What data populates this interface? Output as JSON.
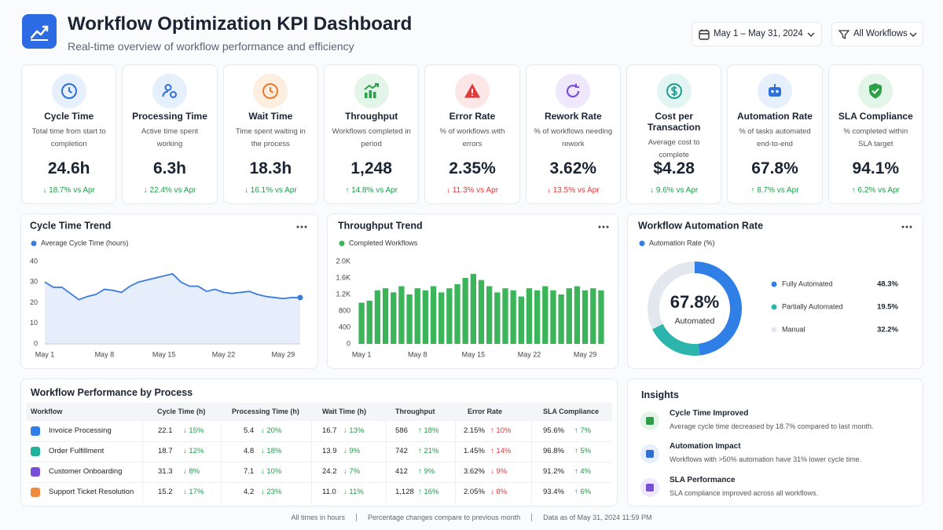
{
  "header": {
    "title": "Workflow Optimization KPI Dashboard",
    "subtitle": "Real-time overview of workflow performance and efficiency",
    "date_range": "May 1 – May 31, 2024",
    "filter": "All Workflows"
  },
  "kpis": [
    {
      "title": "Cycle Time",
      "description": "Total time from start to completion",
      "value": "24.6h",
      "change": "↓ 18.7% vs Apr",
      "color": "#1e9e4a"
    },
    {
      "title": "Processing Time",
      "description": "Active time spent working",
      "value": "6.3h",
      "change": "↓ 22.4% vs Apr",
      "color": "#1e9e4a"
    },
    {
      "title": "Wait Time",
      "description": "Time spent waiting in the process",
      "value": "18.3h",
      "change": "↓ 16.1% vs Apr",
      "color": "#1e9e4a"
    },
    {
      "title": "Throughput",
      "description": "Workflows completed in period",
      "value": "1,248",
      "change": "↑ 14.8% vs Apr",
      "color": "#1e9e4a"
    },
    {
      "title": "Error Rate",
      "description": "% of workflows with errors",
      "value": "2.35%",
      "change": "↓ 11.3% vs Apr",
      "color": "#e03a3a"
    },
    {
      "title": "Rework Rate",
      "description": "% of workflows needing rework",
      "value": "3.62%",
      "change": "↓ 13.5% vs Apr",
      "color": "#e03a3a"
    },
    {
      "title": "Cost per Transaction",
      "description": "Average cost to complete",
      "value": "$4.28",
      "change": "↓ 9.6% vs Apr",
      "color": "#1e9e4a"
    },
    {
      "title": "Automation Rate",
      "description": "% of tasks automated end-to-end",
      "value": "67.8%",
      "change": "↑ 8.7% vs Apr",
      "color": "#1e9e4a"
    },
    {
      "title": "SLA Compliance",
      "description": "% completed within SLA target",
      "value": "94.1%",
      "change": "↑ 6.2% vs Apr",
      "color": "#1e9e4a"
    }
  ],
  "chart_data": [
    {
      "type": "line",
      "title": "Cycle Time Trend",
      "grid": false,
      "categories": [
        "May 1",
        null,
        null,
        null,
        null,
        null,
        null,
        "May 8",
        null,
        null,
        null,
        null,
        null,
        null,
        "May 15",
        null,
        null,
        null,
        null,
        null,
        null,
        "May 22",
        null,
        null,
        null,
        null,
        null,
        null,
        "May 29",
        null,
        null
      ],
      "series": [
        {
          "name": "Average Cycle Time (hours)",
          "color": "#3b7be0",
          "values": [
            30,
            27.5,
            27.5,
            24.5,
            21.5,
            23,
            24,
            26.5,
            26,
            25,
            28,
            30,
            31,
            32,
            33,
            34,
            30,
            28,
            28,
            25.5,
            26.5,
            25,
            24.5,
            25,
            25.5,
            24,
            23,
            22.5,
            22,
            22.5,
            22.5
          ]
        }
      ],
      "ylim": [
        0,
        40
      ],
      "yticks": [
        0,
        10,
        20,
        30,
        40
      ]
    },
    {
      "type": "bar",
      "title": "Throughput Trend",
      "grid": false,
      "categories": [
        "May 1",
        null,
        null,
        null,
        null,
        null,
        null,
        "May 8",
        null,
        null,
        null,
        null,
        null,
        null,
        "May 15",
        null,
        null,
        null,
        null,
        null,
        null,
        "May 22",
        null,
        null,
        null,
        null,
        null,
        null,
        "May 29",
        null,
        null
      ],
      "series": [
        {
          "name": "Completed Workflows",
          "color": "#3cb55a",
          "values": [
            1000,
            1050,
            1300,
            1350,
            1250,
            1400,
            1200,
            1350,
            1300,
            1400,
            1250,
            1350,
            1450,
            1600,
            1700,
            1550,
            1400,
            1250,
            1350,
            1300,
            1150,
            1350,
            1300,
            1400,
            1300,
            1200,
            1350,
            1400,
            1300,
            1350,
            1300
          ]
        }
      ],
      "ylim": [
        0,
        2000
      ],
      "yticks": [
        0,
        400,
        800,
        {
          "value": 1200,
          "label": "1.2K"
        },
        {
          "value": 1600,
          "label": "1.6K"
        },
        {
          "value": 2000,
          "label": "2.0K"
        }
      ]
    },
    {
      "type": "pie",
      "title": "Workflow Automation Rate",
      "legend_title": "Automation Rate (%)",
      "center_value": "67.8%",
      "center_label": "Automated",
      "categories": [
        "Fully Automated",
        "Partially Automated",
        "Manual"
      ],
      "values": [
        48.3,
        19.5,
        32.2
      ],
      "value_labels": [
        "48.3%",
        "19.5%",
        "32.2%"
      ],
      "colors": [
        "#2f7fe6",
        "#2bb5ad",
        "#e3e8ef"
      ]
    }
  ],
  "table": {
    "title": "Workflow Performance by Process",
    "columns": [
      "Workflow",
      "Cycle Time (h)",
      "Processing Time (h)",
      "Wait Time (h)",
      "Throughput",
      "Error Rate",
      "SLA Compliance"
    ],
    "change_colors": [
      "#1e9e4a",
      "#1e9e4a",
      "#1e9e4a",
      "#1e9e4a",
      "#e03a3a",
      "#1e9e4a"
    ],
    "rows": [
      [
        "Invoice Processing",
        "22.1",
        "↓ 15%",
        "5.4",
        "↓ 20%",
        "16.7",
        "↓ 13%",
        "586",
        "↑ 18%",
        "2.15%",
        "↑ 10%",
        "95.6%",
        "↑ 7%"
      ],
      [
        "Order Fulfillment",
        "18.7",
        "↓ 12%",
        "4.8",
        "↓ 18%",
        "13.9",
        "↓ 9%",
        "742",
        "↑ 21%",
        "1.45%",
        "↑ 14%",
        "96.8%",
        "↑ 5%"
      ],
      [
        "Customer Onboarding",
        "31.3",
        "↓ 8%",
        "7.1",
        "↓ 10%",
        "24.2",
        "↓ 7%",
        "412",
        "↑ 9%",
        "3.62%",
        "↓ 9%",
        "91.2%",
        "↑ 4%"
      ],
      [
        "Support Ticket Resolution",
        "15.2",
        "↓ 17%",
        "4.2",
        "↓ 23%",
        "11.0",
        "↓ 11%",
        "1,128",
        "↑ 16%",
        "2.05%",
        "↓ 8%",
        "93.4%",
        "↑ 6%"
      ]
    ]
  },
  "insights": {
    "title": "Insights",
    "items": [
      {
        "title": "Cycle Time Improved",
        "text": "Average cycle time decreased by 18.7% compared to last month."
      },
      {
        "title": "Automation Impact",
        "text": "Workflows with >50% automation have 31% lower cycle time."
      },
      {
        "title": "SLA Performance",
        "text": "SLA compliance improved across all workflows."
      }
    ]
  },
  "footer": [
    "All times in hours",
    "Percentage changes compare to previous month",
    "Data as of May 31, 2024 11:59 PM"
  ]
}
